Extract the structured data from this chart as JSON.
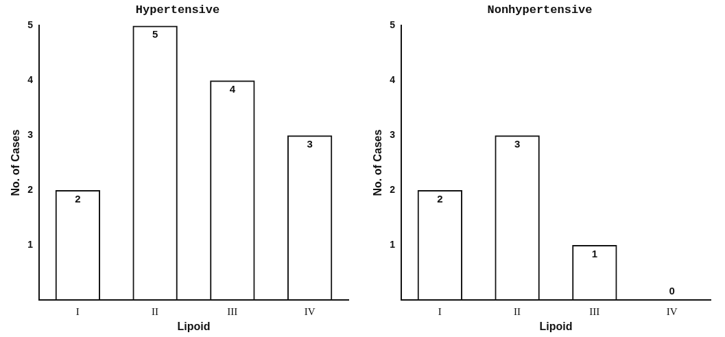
{
  "chart_data": [
    {
      "type": "bar",
      "title": "Hypertensive",
      "xlabel": "Lipoid",
      "ylabel": "No. of Cases",
      "categories": [
        "I",
        "II",
        "III",
        "IV"
      ],
      "values": [
        2,
        5,
        4,
        3
      ],
      "color": "#111111",
      "ylim": [
        0,
        5
      ],
      "yticks": [
        1,
        2,
        3,
        4,
        5
      ],
      "grid": false,
      "data_labels": true
    },
    {
      "type": "bar",
      "title": "Nonhypertensive",
      "xlabel": "Lipoid",
      "ylabel": "No. of Cases",
      "categories": [
        "I",
        "II",
        "III",
        "IV"
      ],
      "values": [
        2,
        3,
        1,
        0
      ],
      "color": "#111111",
      "ylim": [
        0,
        5
      ],
      "yticks": [
        1,
        2,
        3,
        4,
        5
      ],
      "grid": false,
      "data_labels": true
    }
  ]
}
